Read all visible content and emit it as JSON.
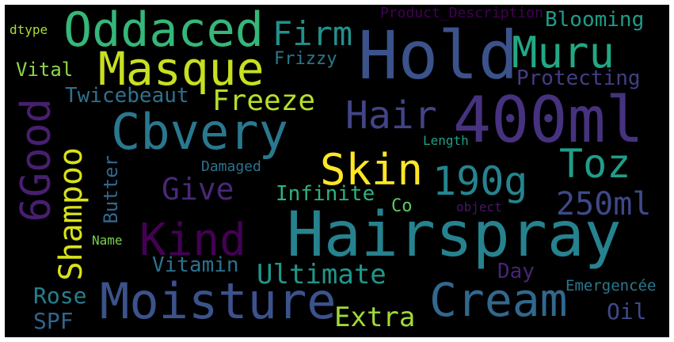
{
  "words": [
    {
      "text": "Hairspray",
      "color": "#26828e"
    },
    {
      "text": "400ml",
      "color": "#46327e"
    },
    {
      "text": "Hold",
      "color": "#3b528b"
    },
    {
      "text": "Cbvery",
      "color": "#2a788e"
    },
    {
      "text": "Moisture",
      "color": "#3b528b"
    },
    {
      "text": "Cream",
      "color": "#31688e"
    },
    {
      "text": "Oddaced",
      "color": "#35b779"
    },
    {
      "text": "Masque",
      "color": "#c8e020"
    },
    {
      "text": "6Good",
      "color": "#481f70"
    },
    {
      "text": "Muru",
      "color": "#22a884"
    },
    {
      "text": "Skin",
      "color": "#fde725"
    },
    {
      "text": "Kind",
      "color": "#440154"
    },
    {
      "text": "190g",
      "color": "#25848e"
    },
    {
      "text": "Toz",
      "color": "#1f9e89"
    },
    {
      "text": "Hair",
      "color": "#414487"
    },
    {
      "text": "Shampoo",
      "color": "#d8e219"
    },
    {
      "text": "Firm",
      "color": "#21918c"
    },
    {
      "text": "250ml",
      "color": "#3e4989"
    },
    {
      "text": "Freeze",
      "color": "#b5de2b"
    },
    {
      "text": "Give",
      "color": "#482878"
    },
    {
      "text": "Ultimate",
      "color": "#1f978b"
    },
    {
      "text": "Extra",
      "color": "#a0da39"
    },
    {
      "text": "Infinite",
      "color": "#2db27d"
    },
    {
      "text": "Twicebeaut",
      "color": "#2c728e"
    },
    {
      "text": "Blooming",
      "color": "#1e9c89"
    },
    {
      "text": "Protecting",
      "color": "#433e85"
    },
    {
      "text": "Vitamin",
      "color": "#2c728e"
    },
    {
      "text": "Butter",
      "color": "#31688e"
    },
    {
      "text": "Rose",
      "color": "#277f8e"
    },
    {
      "text": "SPF",
      "color": "#33638d"
    },
    {
      "text": "Oil",
      "color": "#3e4989"
    },
    {
      "text": "Day",
      "color": "#482475"
    },
    {
      "text": "Frizzy",
      "color": "#2a788e"
    },
    {
      "text": "Vital",
      "color": "#8fd744"
    },
    {
      "text": "Co",
      "color": "#5ec962"
    },
    {
      "text": "Damaged",
      "color": "#2c728e"
    },
    {
      "text": "Emergencée",
      "color": "#2a788e"
    },
    {
      "text": "Product_Description",
      "color": "#440154"
    },
    {
      "text": "Length",
      "color": "#1fa088"
    },
    {
      "text": "object",
      "color": "#481668"
    },
    {
      "text": "Name",
      "color": "#7ad151"
    },
    {
      "text": "dtype",
      "color": "#aadc32"
    }
  ]
}
